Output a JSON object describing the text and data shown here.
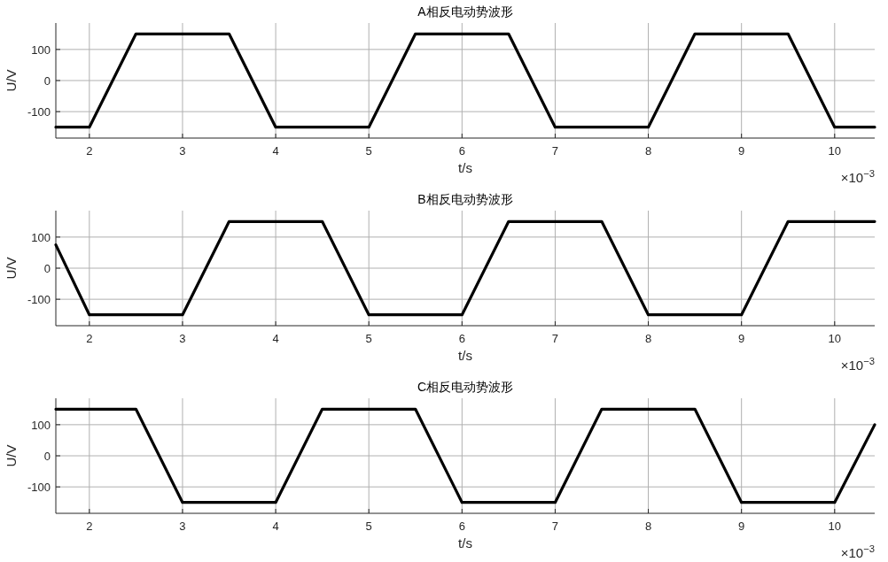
{
  "chart_data": [
    {
      "type": "line",
      "title": "A相反电动势波形",
      "xlabel": "t/s",
      "ylabel": "U/V",
      "annotations": [
        "×10$^{−3}$"
      ],
      "xlim": [
        1.64,
        10.43
      ],
      "xticks": [
        2,
        3,
        4,
        5,
        6,
        7,
        8,
        9,
        10
      ],
      "ylim": [
        -185,
        185
      ],
      "yticks": [
        -100,
        0,
        100
      ],
      "grid": true,
      "marker": "none",
      "line_style": "solid",
      "series": [
        {
          "color": "#000000",
          "x": [
            1.64,
            2,
            2.5,
            3.5,
            4,
            5,
            5.5,
            6.5,
            7,
            8,
            8.5,
            9.5,
            10,
            10.43
          ],
          "values": [
            -150,
            -150,
            150,
            150,
            -150,
            -150,
            150,
            150,
            -150,
            -150,
            150,
            150,
            -150,
            -150
          ]
        }
      ]
    },
    {
      "type": "line",
      "title": "B相反电动势波形",
      "xlabel": "t/s",
      "ylabel": "U/V",
      "annotations": [
        "×10$^{−3}$"
      ],
      "xlim": [
        1.64,
        10.43
      ],
      "xticks": [
        2,
        3,
        4,
        5,
        6,
        7,
        8,
        9,
        10
      ],
      "ylim": [
        -185,
        185
      ],
      "yticks": [
        -100,
        0,
        100
      ],
      "grid": true,
      "marker": "none",
      "line_style": "solid",
      "series": [
        {
          "color": "#000000",
          "x": [
            1.64,
            2,
            3,
            3.5,
            4.5,
            5,
            6,
            6.5,
            7.5,
            8,
            9,
            9.5,
            10.43
          ],
          "values": [
            75,
            -150,
            -150,
            150,
            150,
            -150,
            -150,
            150,
            150,
            -150,
            -150,
            150,
            150
          ]
        }
      ]
    },
    {
      "type": "line",
      "title": "C相反电动势波形",
      "xlabel": "t/s",
      "ylabel": "U/V",
      "annotations": [
        "×10$^{−3}$"
      ],
      "xlim": [
        1.64,
        10.43
      ],
      "xticks": [
        2,
        3,
        4,
        5,
        6,
        7,
        8,
        9,
        10
      ],
      "ylim": [
        -185,
        185
      ],
      "yticks": [
        -100,
        0,
        100
      ],
      "grid": true,
      "marker": "none",
      "line_style": "solid",
      "series": [
        {
          "color": "#000000",
          "x": [
            1.64,
            2.5,
            3,
            4,
            4.5,
            5.5,
            6,
            7,
            7.5,
            8.5,
            9,
            10,
            10.43
          ],
          "values": [
            150,
            150,
            -150,
            -150,
            150,
            150,
            -150,
            -150,
            150,
            150,
            -150,
            -150,
            100
          ]
        }
      ]
    }
  ]
}
